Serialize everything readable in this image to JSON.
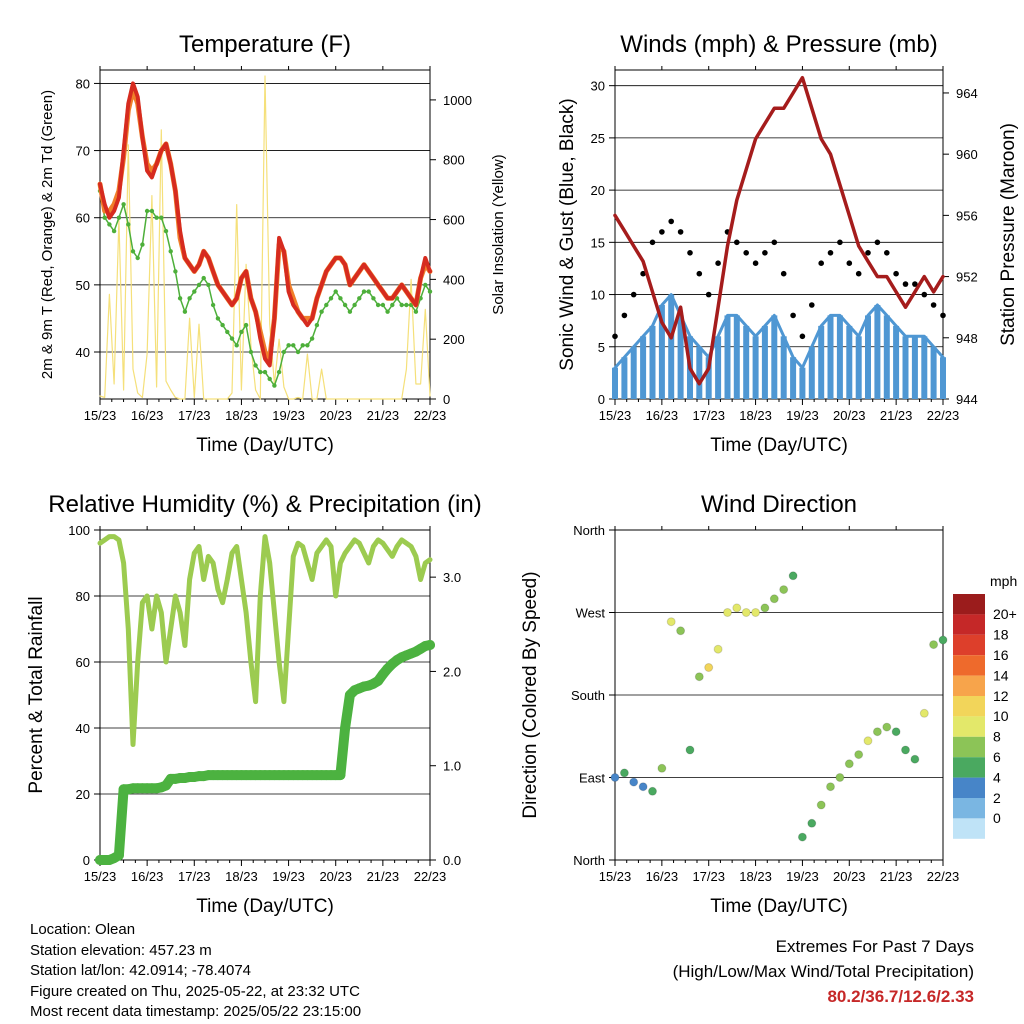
{
  "x_ticks": [
    "15/23",
    "16/23",
    "17/23",
    "18/23",
    "19/23",
    "20/23",
    "21/23",
    "22/23"
  ],
  "xlabel": "Time (Day/UTC)",
  "info": {
    "location": "Location: Olean",
    "elevation": "Station elevation: 457.23 m",
    "latlon": "Station lat/lon: 42.0914; -78.4074",
    "created": "Figure created on Thu, 2025-05-22, at 23:32 UTC",
    "recent": "Most recent data timestamp: 2025/05/22 23:15:00"
  },
  "extremes": {
    "title": "Extremes For Past 7 Days",
    "subtitle": "(High/Low/Max Wind/Total Precipitation)",
    "values": "80.2/36.7/12.6/2.33"
  },
  "colors": {
    "temp_2m": "#d62b1f",
    "temp_9m": "#f07f2a",
    "dewpoint": "#4daf3a",
    "solar": "#f5e07a",
    "wind": "#4f97d3",
    "gust": "#000000",
    "pressure": "#a51c1c",
    "rh": "#9ccb50",
    "precip": "#4cb240"
  },
  "chart_data": [
    {
      "type": "line",
      "title": "Temperature (F)",
      "xlabel": "Time (Day/UTC)",
      "ylabel": "2m & 9m T (Red, Orange) & 2m Td (Green)",
      "y2label": "Solar Insolation (Yellow)",
      "ylim": [
        33,
        82
      ],
      "yticks": [
        40,
        50,
        60,
        70,
        80
      ],
      "y2lim": [
        0,
        1100
      ],
      "y2ticks": [
        0,
        200,
        400,
        600,
        800,
        1000
      ],
      "x": [
        0,
        0.1,
        0.2,
        0.3,
        0.4,
        0.5,
        0.6,
        0.7,
        0.8,
        0.9,
        1.0,
        1.1,
        1.2,
        1.3,
        1.4,
        1.5,
        1.6,
        1.7,
        1.8,
        1.9,
        2.0,
        2.1,
        2.2,
        2.3,
        2.4,
        2.5,
        2.6,
        2.7,
        2.8,
        2.9,
        3.0,
        3.1,
        3.2,
        3.3,
        3.4,
        3.5,
        3.6,
        3.7,
        3.8,
        3.9,
        4.0,
        4.1,
        4.2,
        4.3,
        4.4,
        4.5,
        4.6,
        4.7,
        4.8,
        4.9,
        5.0,
        5.1,
        5.2,
        5.3,
        5.4,
        5.5,
        5.6,
        5.7,
        5.8,
        5.9,
        6.0,
        6.1,
        6.2,
        6.3,
        6.4,
        6.5,
        6.6,
        6.7,
        6.8,
        6.9,
        7.0
      ],
      "series": [
        {
          "name": "2m T",
          "values": [
            65,
            62,
            60,
            61,
            63,
            70,
            77,
            80,
            78,
            72,
            67,
            66,
            68,
            70,
            71,
            68,
            64,
            58,
            54,
            53,
            52,
            53,
            55,
            54,
            52,
            50,
            49,
            48,
            47,
            48,
            51,
            52,
            48,
            46,
            42,
            39,
            38,
            45,
            57,
            55,
            49,
            47,
            46,
            45,
            44,
            45,
            48,
            50,
            52,
            53,
            54,
            54,
            53,
            50,
            51,
            52,
            53,
            52,
            51,
            50,
            49,
            48,
            48,
            49,
            50,
            49,
            48,
            47,
            51,
            54,
            52
          ]
        },
        {
          "name": "9m T",
          "values": [
            65,
            61,
            61,
            62,
            64,
            69,
            76,
            79,
            77,
            72,
            68,
            67,
            68,
            70,
            71,
            68,
            64,
            57,
            54,
            53,
            52,
            53,
            55,
            54,
            52,
            50,
            49,
            48,
            47,
            48,
            51,
            52,
            48,
            46,
            43,
            40,
            39,
            45,
            56,
            55,
            50,
            48,
            46,
            45,
            45,
            45,
            48,
            50,
            52,
            53,
            54,
            54,
            53,
            50,
            51,
            52,
            53,
            52,
            51,
            50,
            49,
            48,
            48,
            49,
            50,
            49,
            48,
            47,
            51,
            53,
            52
          ]
        },
        {
          "name": "2m Td",
          "values": [
            64,
            60,
            59,
            58,
            60,
            62,
            59,
            55,
            54,
            56,
            61,
            61,
            60,
            60,
            58,
            55,
            52,
            48,
            46,
            48,
            49,
            50,
            51,
            50,
            47,
            45,
            44,
            43,
            42,
            41,
            43,
            44,
            40,
            38,
            37,
            37,
            36,
            35,
            37,
            40,
            41,
            41,
            40,
            41,
            41,
            42,
            44,
            46,
            47,
            48,
            49,
            48,
            47,
            46,
            47,
            48,
            49,
            49,
            48,
            47,
            47,
            46,
            47,
            48,
            47,
            47,
            47,
            46,
            48,
            50,
            49
          ]
        },
        {
          "name": "Solar",
          "axis": "y2",
          "values": [
            10,
            5,
            350,
            50,
            600,
            30,
            850,
            100,
            20,
            5,
            150,
            680,
            40,
            900,
            60,
            30,
            5,
            0,
            0,
            270,
            5,
            250,
            0,
            0,
            0,
            0,
            0,
            0,
            20,
            650,
            30,
            450,
            180,
            30,
            0,
            1080,
            250,
            50,
            200,
            40,
            0,
            0,
            5,
            0,
            150,
            0,
            0,
            100,
            0,
            0,
            0,
            0,
            0,
            0,
            0,
            0,
            0,
            0,
            0,
            0,
            0,
            0,
            0,
            0,
            0,
            100,
            400,
            50,
            50,
            300,
            10
          ]
        }
      ]
    },
    {
      "type": "scatter",
      "title": "Winds (mph) & Pressure (mb)",
      "xlabel": "Time (Day/UTC)",
      "ylabel": "Sonic Wind & Gust (Blue, Black)",
      "y2label": "Station Pressure (Maroon)",
      "ylim": [
        0,
        31.5
      ],
      "yticks": [
        0,
        5,
        10,
        15,
        20,
        25,
        30
      ],
      "y2lim": [
        944,
        965.5
      ],
      "y2ticks": [
        944,
        948,
        952,
        956,
        960,
        964
      ],
      "x": [
        0,
        0.2,
        0.4,
        0.6,
        0.8,
        1.0,
        1.2,
        1.4,
        1.6,
        1.8,
        2.0,
        2.2,
        2.4,
        2.6,
        2.8,
        3.0,
        3.2,
        3.4,
        3.6,
        3.8,
        4.0,
        4.2,
        4.4,
        4.6,
        4.8,
        5.0,
        5.2,
        5.4,
        5.6,
        5.8,
        6.0,
        6.2,
        6.4,
        6.6,
        6.8,
        7.0
      ],
      "series": [
        {
          "name": "Wind",
          "values": [
            3,
            4,
            5,
            6,
            7,
            9,
            10,
            8,
            6,
            5,
            4,
            6,
            8,
            8,
            7,
            6,
            7,
            8,
            6,
            4,
            3,
            5,
            7,
            8,
            8,
            7,
            6,
            8,
            9,
            8,
            7,
            6,
            6,
            6,
            5,
            4
          ]
        },
        {
          "name": "Gust",
          "values": [
            6,
            8,
            10,
            12,
            15,
            16,
            17,
            16,
            14,
            12,
            10,
            13,
            16,
            15,
            14,
            13,
            14,
            15,
            12,
            8,
            6,
            9,
            13,
            14,
            15,
            13,
            12,
            14,
            15,
            14,
            12,
            11,
            11,
            10,
            9,
            8
          ]
        },
        {
          "name": "Pressure",
          "axis": "y2",
          "values": [
            956,
            955,
            954,
            953,
            951,
            949,
            948,
            950,
            946,
            945,
            946,
            950,
            954,
            957,
            959,
            961,
            962,
            963,
            963,
            964,
            965,
            963,
            961,
            960,
            958,
            956,
            954,
            953,
            952,
            952,
            951,
            950,
            951,
            952,
            951,
            952
          ]
        }
      ]
    },
    {
      "type": "line",
      "title": "Relative Humidity (%) & Precipitation (in)",
      "xlabel": "Time (Day/UTC)",
      "ylabel": "Percent & Total Rainfall",
      "ylim": [
        0,
        100
      ],
      "yticks": [
        0,
        20,
        40,
        60,
        80,
        100
      ],
      "y2lim": [
        0,
        3.5
      ],
      "y2ticks": [
        "0.0",
        "1.0",
        "2.0",
        "3.0"
      ],
      "x": [
        0,
        0.1,
        0.2,
        0.3,
        0.4,
        0.5,
        0.6,
        0.7,
        0.8,
        0.9,
        1.0,
        1.1,
        1.2,
        1.3,
        1.4,
        1.5,
        1.6,
        1.7,
        1.8,
        1.9,
        2.0,
        2.1,
        2.2,
        2.3,
        2.4,
        2.5,
        2.6,
        2.7,
        2.8,
        2.9,
        3.0,
        3.1,
        3.2,
        3.3,
        3.4,
        3.5,
        3.6,
        3.7,
        3.8,
        3.9,
        4.0,
        4.1,
        4.2,
        4.3,
        4.4,
        4.5,
        4.6,
        4.7,
        4.8,
        4.9,
        5.0,
        5.1,
        5.2,
        5.3,
        5.4,
        5.5,
        5.6,
        5.7,
        5.8,
        5.9,
        6.0,
        6.1,
        6.2,
        6.3,
        6.4,
        6.5,
        6.6,
        6.7,
        6.8,
        6.9,
        7.0
      ],
      "series": [
        {
          "name": "RH",
          "values": [
            96,
            97,
            98,
            98,
            97,
            90,
            70,
            35,
            60,
            78,
            80,
            70,
            80,
            75,
            60,
            70,
            80,
            75,
            65,
            85,
            93,
            95,
            85,
            92,
            90,
            82,
            78,
            85,
            93,
            95,
            85,
            75,
            60,
            48,
            80,
            98,
            90,
            75,
            60,
            48,
            70,
            92,
            96,
            95,
            90,
            85,
            93,
            95,
            97,
            95,
            80,
            90,
            93,
            95,
            97,
            96,
            93,
            90,
            95,
            97,
            96,
            94,
            92,
            95,
            97,
            96,
            95,
            92,
            85,
            90,
            91
          ]
        },
        {
          "name": "Precip",
          "axis": "y2",
          "values": [
            0,
            0,
            0,
            0.02,
            0.05,
            0.75,
            0.75,
            0.76,
            0.76,
            0.76,
            0.76,
            0.76,
            0.76,
            0.77,
            0.79,
            0.86,
            0.86,
            0.87,
            0.87,
            0.88,
            0.88,
            0.89,
            0.89,
            0.9,
            0.9,
            0.9,
            0.9,
            0.9,
            0.9,
            0.9,
            0.9,
            0.9,
            0.9,
            0.9,
            0.9,
            0.9,
            0.9,
            0.9,
            0.9,
            0.9,
            0.9,
            0.9,
            0.9,
            0.9,
            0.9,
            0.9,
            0.9,
            0.9,
            0.9,
            0.9,
            0.9,
            0.9,
            1.4,
            1.75,
            1.8,
            1.82,
            1.84,
            1.85,
            1.87,
            1.9,
            1.97,
            2.03,
            2.08,
            2.12,
            2.15,
            2.17,
            2.19,
            2.21,
            2.24,
            2.27,
            2.28
          ]
        }
      ]
    },
    {
      "type": "scatter",
      "title": "Wind Direction",
      "xlabel": "Time (Day/UTC)",
      "ylabel": "Direction (Colored By Speed)",
      "ylim": [
        0,
        360
      ],
      "yticklabels": [
        "North",
        "East",
        "South",
        "West",
        "North"
      ],
      "colorbar_title": "mph",
      "colorbar_labels": [
        "20+",
        "18",
        "16",
        "14",
        "12",
        "10",
        "8",
        "6",
        "4",
        "2",
        "0"
      ],
      "colorbar_colors": [
        "#9b1c1c",
        "#c52828",
        "#dd3f2b",
        "#ee6a2c",
        "#f7a44b",
        "#f2d55a",
        "#e3e86a",
        "#8cc457",
        "#4aa960",
        "#4785c8",
        "#7ab6e2",
        "#bfe3f7"
      ],
      "x": [
        0,
        0.2,
        0.4,
        0.6,
        0.8,
        1.0,
        1.2,
        1.4,
        1.6,
        1.8,
        2.0,
        2.2,
        2.4,
        2.6,
        2.8,
        3.0,
        3.2,
        3.4,
        3.6,
        3.8,
        4.0,
        4.2,
        4.4,
        4.6,
        4.8,
        5.0,
        5.2,
        5.4,
        5.6,
        5.8,
        6.0,
        6.2,
        6.4,
        6.6,
        6.8,
        7.0
      ],
      "direction": [
        90,
        95,
        85,
        80,
        75,
        100,
        260,
        250,
        120,
        200,
        210,
        230,
        270,
        275,
        270,
        270,
        275,
        285,
        295,
        310,
        25,
        40,
        60,
        80,
        90,
        105,
        115,
        130,
        140,
        145,
        140,
        120,
        110,
        160,
        235,
        240
      ],
      "speed": [
        3,
        4,
        3,
        3,
        5,
        7,
        9,
        6,
        5,
        7,
        10,
        9,
        8,
        8,
        9,
        8,
        7,
        6,
        6,
        5,
        4,
        5,
        6,
        7,
        6,
        7,
        7,
        8,
        7,
        6,
        5,
        4,
        5,
        8,
        6,
        5
      ]
    }
  ]
}
